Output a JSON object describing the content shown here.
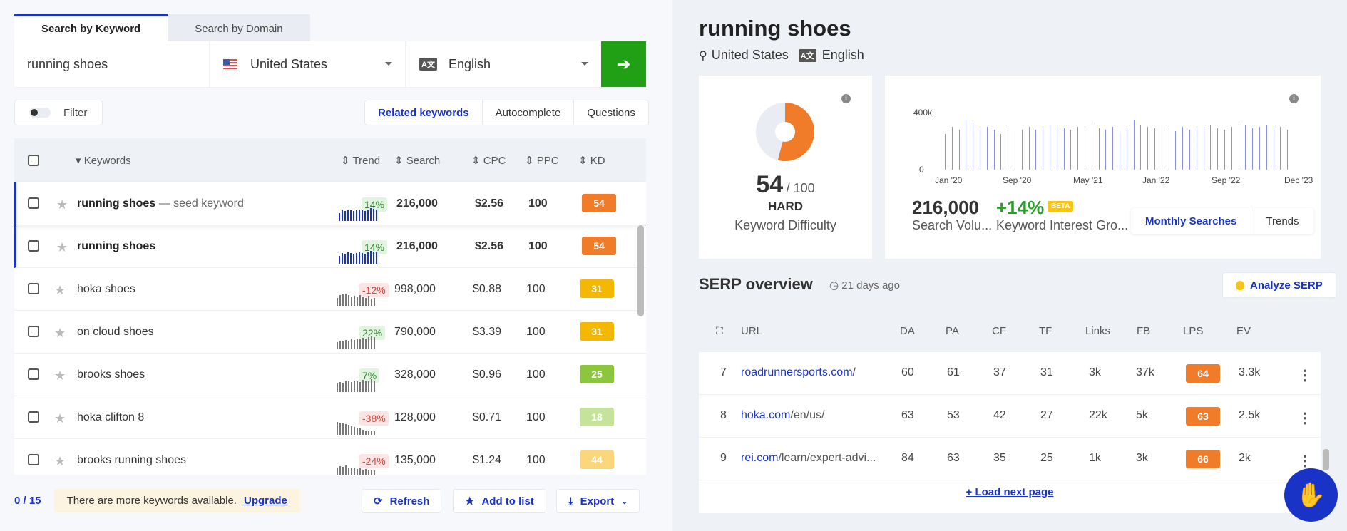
{
  "tabs": [
    "Search by Keyword",
    "Search by Domain"
  ],
  "search": {
    "keyword": "running shoes",
    "country": "United States",
    "language": "English",
    "lang_icon": "A文"
  },
  "filter_label": "Filter",
  "segments": [
    "Related keywords",
    "Autocomplete",
    "Questions"
  ],
  "table": {
    "headers": {
      "keywords": "Keywords",
      "trend": "Trend",
      "search": "Search",
      "cpc": "CPC",
      "ppc": "PPC",
      "kd": "KD"
    },
    "seed_suffix": "— seed keyword",
    "rows": [
      {
        "keyword": "running shoes",
        "trend": "14%",
        "search": "216,000",
        "cpc": "$2.56",
        "ppc": "100",
        "kd": "54",
        "kd_color": "#f07c2a",
        "bars": [
          0.55,
          0.75,
          0.7,
          0.8,
          0.75,
          0.7,
          0.75,
          0.8,
          0.75,
          0.7,
          0.8,
          0.9,
          0.85,
          0.8
        ]
      },
      {
        "keyword": "running shoes",
        "trend": "14%",
        "search": "216,000",
        "cpc": "$2.56",
        "ppc": "100",
        "kd": "54",
        "kd_color": "#f07c2a",
        "bars": [
          0.55,
          0.75,
          0.7,
          0.8,
          0.75,
          0.7,
          0.75,
          0.8,
          0.75,
          0.7,
          0.8,
          0.9,
          0.85,
          0.8
        ]
      },
      {
        "keyword": "hoka shoes",
        "trend": "-12%",
        "search": "998,000",
        "cpc": "$0.88",
        "ppc": "100",
        "kd": "31",
        "kd_color": "#f5b800",
        "bars": [
          0.6,
          0.8,
          0.85,
          0.9,
          0.8,
          0.7,
          0.75,
          0.65,
          0.8,
          0.7,
          0.6,
          0.75,
          0.55,
          0.6
        ]
      },
      {
        "keyword": "on cloud shoes",
        "trend": "22%",
        "search": "790,000",
        "cpc": "$3.39",
        "ppc": "100",
        "kd": "31",
        "kd_color": "#f5b800",
        "bars": [
          0.5,
          0.6,
          0.55,
          0.65,
          0.6,
          0.7,
          0.65,
          0.75,
          0.7,
          0.8,
          0.75,
          0.85,
          0.9,
          0.85
        ]
      },
      {
        "keyword": "brooks shoes",
        "trend": "7%",
        "search": "328,000",
        "cpc": "$0.96",
        "ppc": "100",
        "kd": "25",
        "kd_color": "#8cc63f",
        "bars": [
          0.6,
          0.7,
          0.65,
          0.8,
          0.75,
          0.7,
          0.8,
          0.75,
          0.7,
          0.85,
          0.8,
          0.75,
          0.9,
          0.8
        ]
      },
      {
        "keyword": "hoka clifton 8",
        "trend": "-38%",
        "search": "128,000",
        "cpc": "$0.71",
        "ppc": "100",
        "kd": "18",
        "kd_color": "#c5e39a",
        "bars": [
          0.9,
          0.85,
          0.8,
          0.75,
          0.7,
          0.6,
          0.55,
          0.5,
          0.45,
          0.35,
          0.3,
          0.25,
          0.3,
          0.25
        ]
      },
      {
        "keyword": "brooks running shoes",
        "trend": "-24%",
        "search": "135,000",
        "cpc": "$1.24",
        "ppc": "100",
        "kd": "44",
        "kd_color": "#fbd67a",
        "bars": [
          0.7,
          0.8,
          0.75,
          0.85,
          0.7,
          0.65,
          0.7,
          0.6,
          0.65,
          0.55,
          0.6,
          0.5,
          0.55,
          0.5
        ]
      }
    ]
  },
  "footer": {
    "count": "0 / 15",
    "upsell_text": "There are more keywords available.",
    "upgrade": "Upgrade",
    "refresh": "Refresh",
    "add_to_list": "Add to list",
    "export": "Export"
  },
  "overview": {
    "title": "running shoes",
    "location": "United States",
    "language": "English",
    "kd_value": "54",
    "kd_max": "/ 100",
    "kd_level": "HARD",
    "kd_label": "Keyword Difficulty",
    "kd_color": "#f07c2a",
    "volume": "216,000",
    "volume_label": "Search Volu...",
    "growth": "+14%",
    "growth_label": "Keyword Interest Gro...",
    "beta": "BETA",
    "toggle_on": "Monthly Searches",
    "toggle_off": "Trends"
  },
  "chart_data": {
    "type": "bar",
    "ylim": [
      0,
      400000
    ],
    "y_ticks": [
      "400k",
      "0"
    ],
    "x_ticks": [
      "Jan '20",
      "Sep '20",
      "May '21",
      "Jan '22",
      "Sep '22",
      "Dec '23"
    ],
    "values": [
      250000,
      300000,
      280000,
      350000,
      330000,
      290000,
      300000,
      280000,
      250000,
      290000,
      270000,
      280000,
      300000,
      280000,
      290000,
      310000,
      300000,
      290000,
      280000,
      300000,
      290000,
      320000,
      290000,
      280000,
      300000,
      270000,
      290000,
      350000,
      310000,
      300000,
      290000,
      310000,
      290000,
      270000,
      300000,
      280000,
      290000,
      300000,
      310000,
      290000,
      280000,
      300000,
      320000,
      310000,
      290000,
      300000,
      310000,
      290000,
      300000,
      280000
    ]
  },
  "serp": {
    "heading": "SERP overview",
    "ago": "21 days ago",
    "analyze": "Analyze SERP",
    "headers": {
      "url": "URL",
      "da": "DA",
      "pa": "PA",
      "cf": "CF",
      "tf": "TF",
      "links": "Links",
      "fb": "FB",
      "lps": "LPS",
      "ev": "EV"
    },
    "rows": [
      {
        "pos": "7",
        "domain": "roadrunnersports.com",
        "path": "/",
        "da": "60",
        "pa": "61",
        "cf": "37",
        "tf": "31",
        "links": "3k",
        "fb": "37k",
        "lps": "64",
        "ev": "3.3k"
      },
      {
        "pos": "8",
        "domain": "hoka.com",
        "path": "/en/us/",
        "da": "63",
        "pa": "53",
        "cf": "42",
        "tf": "27",
        "links": "22k",
        "fb": "5k",
        "lps": "63",
        "ev": "2.5k"
      },
      {
        "pos": "9",
        "domain": "rei.com",
        "path": "/learn/expert-advi...",
        "da": "84",
        "pa": "63",
        "cf": "35",
        "tf": "25",
        "links": "1k",
        "fb": "3k",
        "lps": "66",
        "ev": "2k"
      }
    ],
    "load_next": "Load next page"
  },
  "colors": {
    "accent": "#1a33c7",
    "go": "#22a015",
    "lps": "#f07c2a"
  }
}
